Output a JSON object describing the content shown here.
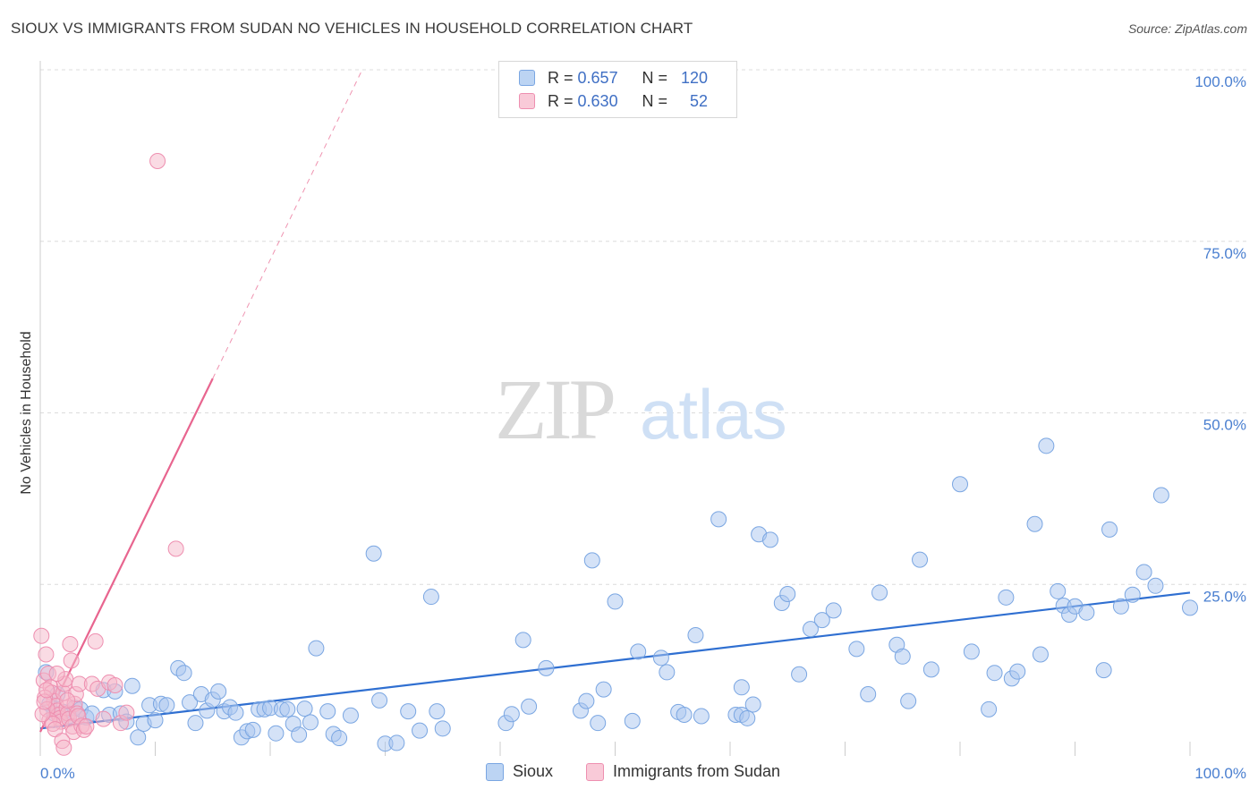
{
  "header": {
    "title": "SIOUX VS IMMIGRANTS FROM SUDAN NO VEHICLES IN HOUSEHOLD CORRELATION CHART",
    "source": "Source: ZipAtlas.com"
  },
  "watermark": {
    "zip": "ZIP",
    "atlas": "atlas"
  },
  "legend_stats": [
    {
      "r_label": "R =",
      "r_value": "0.657",
      "n_label": "N =",
      "n_value": "120",
      "color": "#a9c6ef"
    },
    {
      "r_label": "R =",
      "r_value": "0.630",
      "n_label": "N =",
      "n_value": "52",
      "color": "#f6b7ca"
    }
  ],
  "bottom_legend": [
    {
      "label": "Sioux",
      "color": "#a9c6ef"
    },
    {
      "label": "Immigrants from Sudan",
      "color": "#f6b7ca"
    }
  ],
  "chart_data": {
    "type": "scatter",
    "ylabel": "No Vehicles in Household",
    "xlim": [
      0,
      100
    ],
    "ylim": [
      0,
      100
    ],
    "y_ticks": [
      {
        "value": 25,
        "label": "25.0%"
      },
      {
        "value": 50,
        "label": "50.0%"
      },
      {
        "value": 75,
        "label": "75.0%"
      },
      {
        "value": 100,
        "label": "100.0%"
      }
    ],
    "x_tick_labels": {
      "min": "0.0%",
      "max": "100.0%"
    },
    "grid": true,
    "series": [
      {
        "name": "Sioux",
        "color": "#7aa6e2",
        "fill": "#a9c6ef",
        "trend": {
          "x0": 0,
          "y0": 4.0,
          "x1": 100,
          "y1": 23.8,
          "color": "#2f6fd1"
        },
        "points": [
          [
            0.5,
            12.2
          ],
          [
            0.8,
            7.6
          ],
          [
            1.2,
            6.2
          ],
          [
            1.5,
            9.0
          ],
          [
            2.0,
            6.4
          ],
          [
            2.5,
            5.8
          ],
          [
            3.0,
            7.0
          ],
          [
            3.5,
            6.8
          ],
          [
            4.0,
            5.6
          ],
          [
            4.5,
            6.2
          ],
          [
            5.5,
            9.6
          ],
          [
            6.0,
            6.0
          ],
          [
            6.5,
            9.4
          ],
          [
            7.0,
            6.2
          ],
          [
            7.5,
            5.0
          ],
          [
            8.0,
            10.2
          ],
          [
            8.5,
            2.7
          ],
          [
            9.0,
            4.7
          ],
          [
            9.5,
            7.4
          ],
          [
            10.0,
            5.2
          ],
          [
            10.5,
            7.6
          ],
          [
            11.0,
            7.4
          ],
          [
            12.0,
            12.8
          ],
          [
            12.5,
            12.1
          ],
          [
            13.0,
            7.8
          ],
          [
            13.5,
            4.8
          ],
          [
            14.0,
            9.0
          ],
          [
            14.5,
            6.6
          ],
          [
            15.0,
            8.2
          ],
          [
            15.5,
            9.4
          ],
          [
            16.0,
            6.5
          ],
          [
            16.5,
            7.1
          ],
          [
            17.0,
            6.3
          ],
          [
            17.5,
            2.7
          ],
          [
            18.0,
            3.6
          ],
          [
            18.5,
            3.8
          ],
          [
            19.0,
            6.8
          ],
          [
            19.5,
            6.8
          ],
          [
            20.0,
            7.0
          ],
          [
            20.5,
            3.3
          ],
          [
            21.0,
            6.8
          ],
          [
            21.5,
            6.8
          ],
          [
            22.0,
            4.7
          ],
          [
            22.5,
            3.1
          ],
          [
            23.0,
            6.9
          ],
          [
            23.5,
            4.9
          ],
          [
            24.0,
            15.7
          ],
          [
            25.0,
            6.5
          ],
          [
            25.5,
            3.2
          ],
          [
            26.0,
            2.6
          ],
          [
            27.0,
            5.9
          ],
          [
            29.0,
            29.5
          ],
          [
            29.5,
            8.1
          ],
          [
            30.0,
            1.8
          ],
          [
            31.0,
            1.9
          ],
          [
            32.0,
            6.5
          ],
          [
            33.0,
            3.7
          ],
          [
            34.0,
            23.2
          ],
          [
            34.5,
            6.5
          ],
          [
            35.0,
            4.0
          ],
          [
            40.5,
            4.8
          ],
          [
            41.0,
            6.1
          ],
          [
            42.0,
            16.9
          ],
          [
            42.5,
            7.2
          ],
          [
            44.0,
            12.8
          ],
          [
            47.0,
            6.6
          ],
          [
            47.5,
            8.0
          ],
          [
            48.0,
            28.5
          ],
          [
            48.5,
            4.8
          ],
          [
            49.0,
            9.7
          ],
          [
            50.0,
            22.5
          ],
          [
            51.5,
            5.1
          ],
          [
            52.0,
            15.2
          ],
          [
            54.0,
            14.3
          ],
          [
            54.5,
            12.2
          ],
          [
            55.5,
            6.4
          ],
          [
            56.0,
            6.0
          ],
          [
            57.0,
            17.6
          ],
          [
            57.5,
            5.8
          ],
          [
            59.0,
            34.5
          ],
          [
            60.5,
            6.0
          ],
          [
            61.0,
            6.0
          ],
          [
            61.5,
            5.5
          ],
          [
            61.0,
            10.0
          ],
          [
            62.0,
            7.5
          ],
          [
            62.5,
            32.3
          ],
          [
            63.5,
            31.5
          ],
          [
            64.5,
            22.3
          ],
          [
            65.0,
            23.6
          ],
          [
            66.0,
            11.9
          ],
          [
            67.0,
            18.5
          ],
          [
            68.0,
            19.8
          ],
          [
            69.0,
            21.2
          ],
          [
            71.0,
            15.6
          ],
          [
            72.0,
            9.0
          ],
          [
            73.0,
            23.8
          ],
          [
            74.5,
            16.2
          ],
          [
            75.0,
            14.5
          ],
          [
            75.5,
            8.0
          ],
          [
            76.5,
            28.6
          ],
          [
            77.5,
            12.6
          ],
          [
            80.0,
            39.6
          ],
          [
            81.0,
            15.2
          ],
          [
            82.5,
            6.8
          ],
          [
            83.0,
            12.1
          ],
          [
            84.0,
            23.1
          ],
          [
            84.5,
            11.3
          ],
          [
            85.0,
            12.3
          ],
          [
            86.5,
            33.8
          ],
          [
            87.5,
            45.2
          ],
          [
            87.0,
            14.8
          ],
          [
            88.5,
            24.0
          ],
          [
            89.0,
            21.9
          ],
          [
            89.5,
            20.6
          ],
          [
            90.0,
            21.8
          ],
          [
            91.0,
            20.9
          ],
          [
            92.5,
            12.5
          ],
          [
            93.0,
            33.0
          ],
          [
            94.0,
            21.8
          ],
          [
            95.0,
            23.5
          ],
          [
            96.0,
            26.8
          ],
          [
            97.0,
            24.8
          ],
          [
            97.5,
            38.0
          ],
          [
            100.0,
            21.6
          ]
        ]
      },
      {
        "name": "Immigrants from Sudan",
        "color": "#ee8fb0",
        "fill": "#f6b7ca",
        "trend": {
          "x0": 0,
          "y0": 3.5,
          "x1": 15,
          "y1": 55.0,
          "color": "#e8658f",
          "dash_to": {
            "x": 28,
            "y": 100
          }
        },
        "points": [
          [
            0.1,
            17.5
          ],
          [
            0.3,
            11.0
          ],
          [
            0.5,
            14.8
          ],
          [
            0.7,
            12.0
          ],
          [
            0.9,
            10.0
          ],
          [
            1.0,
            9.2
          ],
          [
            1.2,
            8.0
          ],
          [
            1.4,
            7.3
          ],
          [
            1.5,
            6.6
          ],
          [
            1.6,
            6.0
          ],
          [
            1.7,
            5.5
          ],
          [
            1.8,
            5.0
          ],
          [
            2.0,
            9.2
          ],
          [
            2.1,
            10.5
          ],
          [
            2.2,
            11.2
          ],
          [
            2.3,
            7.0
          ],
          [
            2.4,
            6.2
          ],
          [
            2.5,
            5.4
          ],
          [
            2.6,
            16.3
          ],
          [
            2.7,
            13.9
          ],
          [
            2.8,
            4.3
          ],
          [
            2.9,
            3.5
          ],
          [
            3.0,
            7.6
          ],
          [
            3.1,
            9.0
          ],
          [
            3.2,
            6.2
          ],
          [
            3.3,
            5.8
          ],
          [
            0.4,
            8.5
          ],
          [
            0.6,
            6.8
          ],
          [
            0.8,
            5.2
          ],
          [
            1.1,
            4.7
          ],
          [
            1.3,
            3.9
          ],
          [
            1.9,
            2.2
          ],
          [
            2.05,
            1.2
          ],
          [
            3.4,
            10.5
          ],
          [
            3.6,
            4.4
          ],
          [
            3.8,
            3.8
          ],
          [
            4.0,
            4.3
          ],
          [
            4.5,
            10.5
          ],
          [
            4.8,
            16.7
          ],
          [
            5.0,
            9.8
          ],
          [
            5.5,
            5.4
          ],
          [
            6.0,
            10.7
          ],
          [
            6.5,
            10.3
          ],
          [
            7.0,
            4.8
          ],
          [
            7.5,
            6.3
          ],
          [
            10.2,
            86.7
          ],
          [
            11.8,
            30.2
          ],
          [
            0.2,
            6.1
          ],
          [
            0.35,
            7.9
          ],
          [
            0.55,
            9.6
          ],
          [
            1.45,
            12.0
          ],
          [
            2.35,
            8.1
          ]
        ]
      }
    ]
  }
}
